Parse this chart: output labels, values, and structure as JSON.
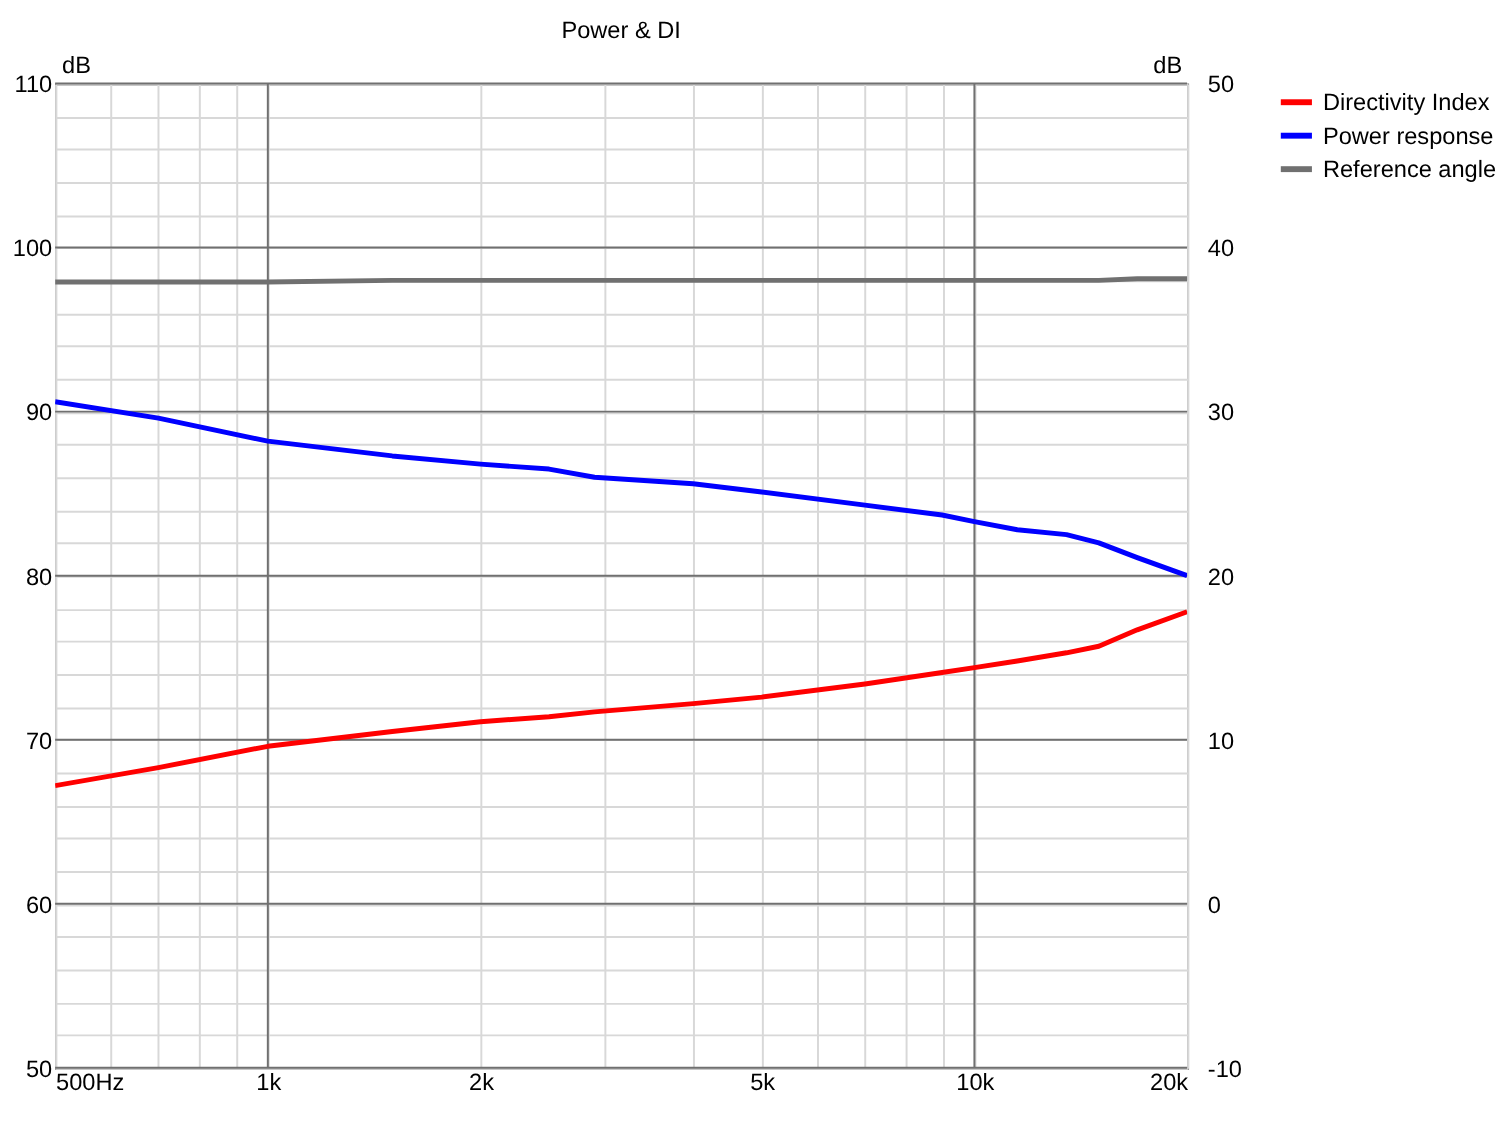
{
  "chart_data": {
    "type": "line",
    "title": "Power & DI",
    "ylabel": "dB",
    "y2label": "dB",
    "x": [
      500,
      700,
      1000,
      1500,
      2000,
      2500,
      2900,
      4000,
      5000,
      7000,
      9000,
      10000,
      11500,
      13500,
      15000,
      17000,
      20000
    ],
    "series": [
      {
        "name": "Directivity Index",
        "color": "#ff0000",
        "axis": "y2",
        "values": [
          7.2,
          8.3,
          9.6,
          10.5,
          11.1,
          11.4,
          11.7,
          12.2,
          12.6,
          13.4,
          14.1,
          14.4,
          14.8,
          15.3,
          15.7,
          16.7,
          17.8
        ]
      },
      {
        "name": "Power response",
        "color": "#0000ff",
        "values": [
          90.6,
          89.6,
          88.2,
          87.3,
          86.8,
          86.5,
          86.0,
          85.6,
          85.1,
          84.3,
          83.7,
          83.3,
          82.8,
          82.5,
          82.0,
          81.1,
          80.0
        ]
      },
      {
        "name": "Reference angle",
        "color": "#707070",
        "values": [
          97.9,
          97.9,
          97.9,
          98.0,
          98.0,
          98.0,
          98.0,
          98.0,
          98.0,
          98.0,
          98.0,
          98.0,
          98.0,
          98.0,
          98.0,
          98.1,
          98.1
        ]
      }
    ],
    "log": "x",
    "xlim": [
      500,
      20000
    ],
    "xticks": [
      {
        "value": 500,
        "label": "500Hz"
      },
      {
        "value": 600,
        "label": null
      },
      {
        "value": 700,
        "label": null
      },
      {
        "value": 800,
        "label": null
      },
      {
        "value": 900,
        "label": null
      },
      {
        "value": 1000,
        "label": "1k"
      },
      {
        "value": 2000,
        "label": "2k"
      },
      {
        "value": 3000,
        "label": null
      },
      {
        "value": 4000,
        "label": null
      },
      {
        "value": 5000,
        "label": "5k"
      },
      {
        "value": 6000,
        "label": null
      },
      {
        "value": 7000,
        "label": null
      },
      {
        "value": 8000,
        "label": null
      },
      {
        "value": 9000,
        "label": null
      },
      {
        "value": 10000,
        "label": "10k"
      },
      {
        "value": 20000,
        "label": "20k"
      }
    ],
    "ylim": [
      50,
      110
    ],
    "yticks": [
      50,
      {
        "value": 52,
        "label": null
      },
      {
        "value": 54,
        "label": null
      },
      {
        "value": 56,
        "label": null
      },
      {
        "value": 58,
        "label": null
      },
      60,
      {
        "value": 62,
        "label": null
      },
      {
        "value": 64,
        "label": null
      },
      {
        "value": 66,
        "label": null
      },
      {
        "value": 68,
        "label": null
      },
      70,
      {
        "value": 72,
        "label": null
      },
      {
        "value": 74,
        "label": null
      },
      {
        "value": 76,
        "label": null
      },
      {
        "value": 78,
        "label": null
      },
      80,
      {
        "value": 82,
        "label": null
      },
      {
        "value": 84,
        "label": null
      },
      {
        "value": 86,
        "label": null
      },
      {
        "value": 88,
        "label": null
      },
      90,
      {
        "value": 92,
        "label": null
      },
      {
        "value": 94,
        "label": null
      },
      {
        "value": 96,
        "label": null
      },
      {
        "value": 98,
        "label": null
      },
      100,
      {
        "value": 102,
        "label": null
      },
      {
        "value": 104,
        "label": null
      },
      {
        "value": 106,
        "label": null
      },
      {
        "value": 108,
        "label": null
      },
      110
    ],
    "y2lim": [
      -10,
      50
    ],
    "y2ticks": [
      -10,
      0,
      10,
      20,
      30,
      40,
      50
    ],
    "grid": true,
    "legend": "right",
    "marker": "none",
    "line_style": "solid"
  }
}
